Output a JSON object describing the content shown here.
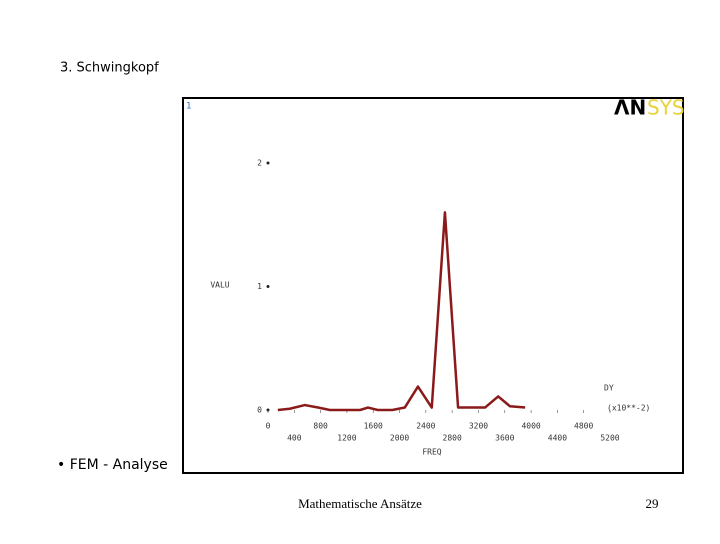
{
  "slide": {
    "title": "3. Schwingkopf",
    "bullet": "• FEM - Analyse",
    "footer": "Mathematische Ansätze",
    "page": "29"
  },
  "window": {
    "number": "1",
    "logo_left": "ΛN",
    "logo_right": "SYS"
  },
  "chart_data": {
    "type": "line",
    "xlabel": "FREQ",
    "ylabel": "VALU",
    "x_multiplier": "(x10**-2)",
    "series": [
      {
        "name": "DY",
        "color": "#8b1a1a",
        "x": [
          150,
          330,
          560,
          760,
          940,
          1170,
          1400,
          1520,
          1670,
          1890,
          2080,
          2280,
          2490,
          2690,
          2890,
          3070,
          3300,
          3500,
          3680,
          3910
        ],
        "values": [
          0,
          0.01,
          0.04,
          0.02,
          0,
          0,
          0,
          0.02,
          0,
          0,
          0.02,
          0.19,
          0.02,
          1.6,
          0.02,
          0.02,
          0.02,
          0.11,
          0.03,
          0.02
        ]
      }
    ],
    "xlim": [
      0,
      5200
    ],
    "xticks": [
      0,
      400,
      800,
      1200,
      1600,
      2000,
      2400,
      2800,
      3200,
      3600,
      4000,
      4400,
      4800,
      5200
    ],
    "ylim": [
      0,
      2
    ],
    "yticks": [
      0,
      1,
      2
    ]
  }
}
